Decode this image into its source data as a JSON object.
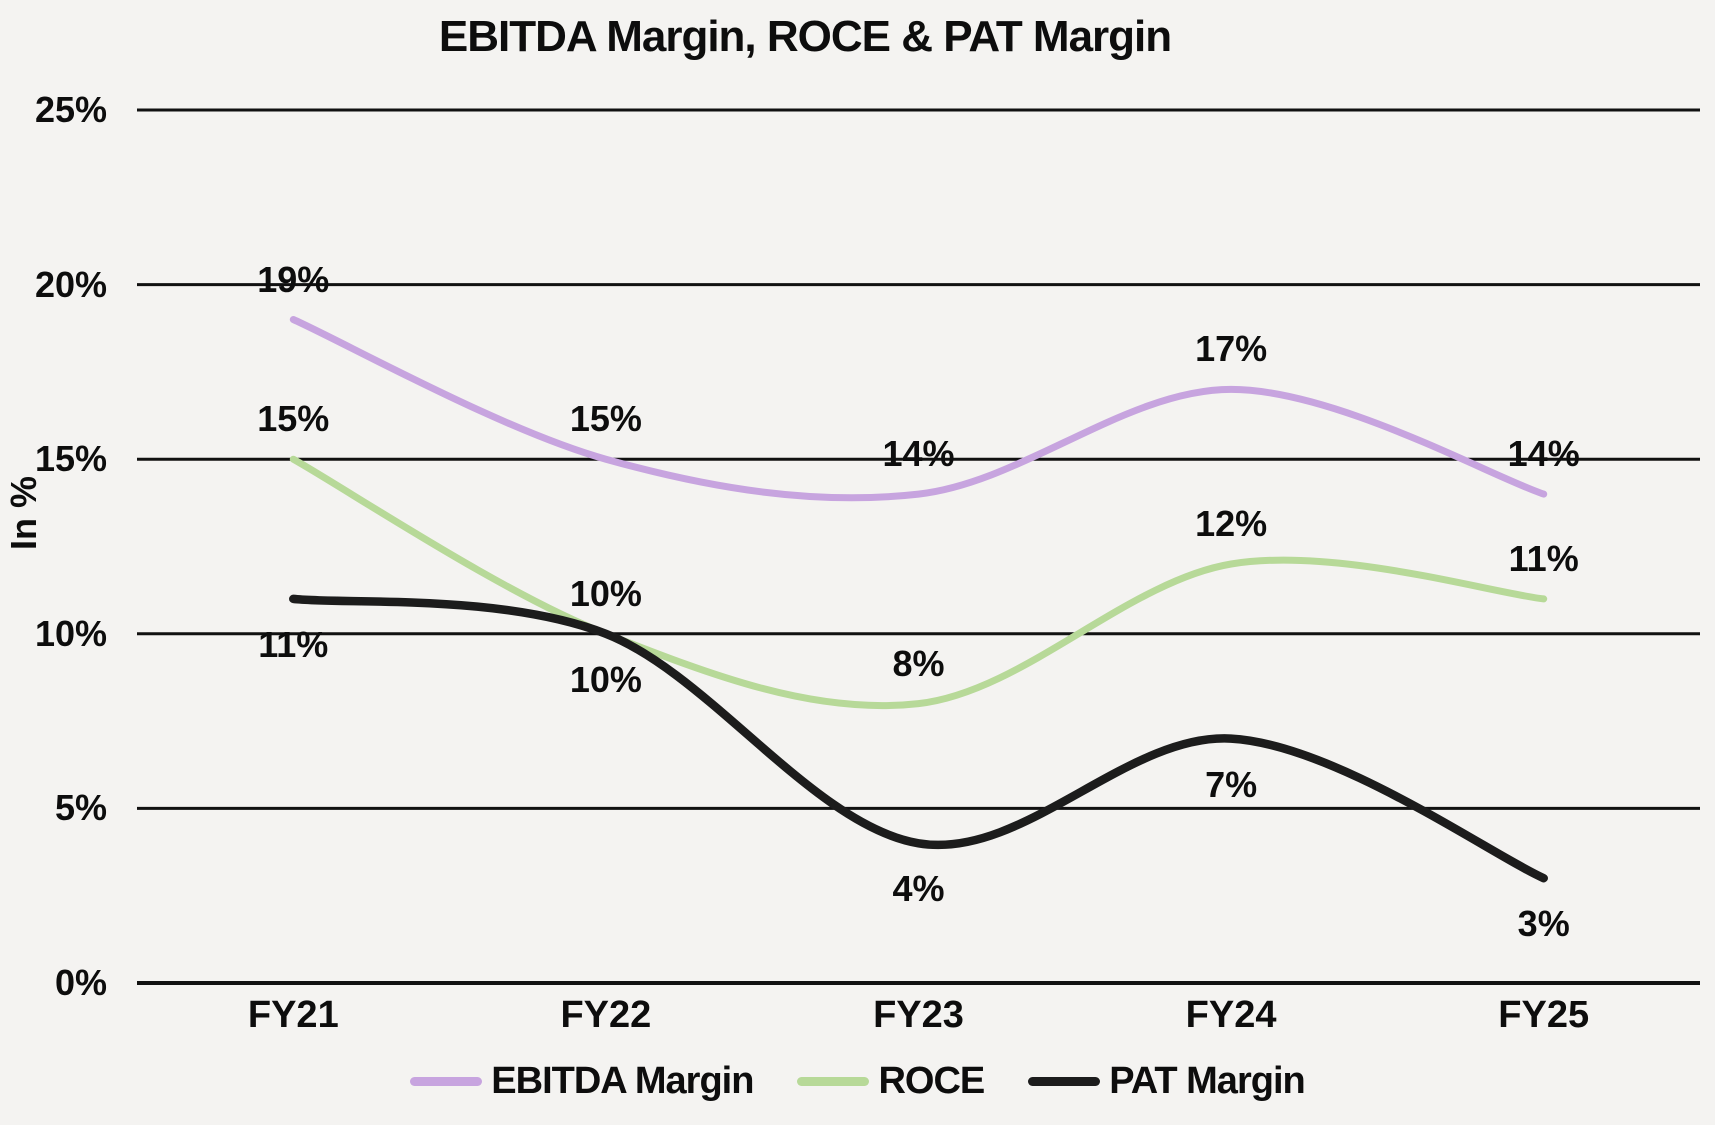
{
  "chart_data": {
    "type": "line",
    "title": "EBITDA Margin, ROCE & PAT Margin",
    "ylabel": "In %",
    "categories": [
      "FY21",
      "FY22",
      "FY23",
      "FY24",
      "FY25"
    ],
    "series": [
      {
        "name": "EBITDA Margin",
        "color": "#c7a4df",
        "values": [
          19,
          15,
          14,
          17,
          14
        ],
        "point_labels": [
          "19%",
          "15%",
          "14%",
          "17%",
          "14%"
        ],
        "label_position": "above"
      },
      {
        "name": "ROCE",
        "color": "#b7d998",
        "values": [
          15,
          10,
          8,
          12,
          11
        ],
        "point_labels": [
          "15%",
          "10%",
          "8%",
          "12%",
          "11%"
        ],
        "label_position": "above"
      },
      {
        "name": "PAT Margin",
        "color": "#1c1c1c",
        "values": [
          11,
          10,
          4,
          7,
          3
        ],
        "point_labels": [
          "11%",
          "10%",
          "4%",
          "7%",
          "3%"
        ],
        "label_position": "below"
      }
    ],
    "y_axis": {
      "tick_labels": [
        "0%",
        "5%",
        "10%",
        "15%",
        "20%",
        "25%"
      ],
      "tick_values": [
        0,
        5,
        10,
        15,
        20,
        25
      ],
      "min": 0,
      "max": 25
    },
    "grid": true,
    "line_style": "smooth",
    "legend_position": "bottom"
  },
  "colors": {
    "background": "#f4f3f1",
    "text": "#0d0d0d",
    "gridline": "#111111"
  }
}
